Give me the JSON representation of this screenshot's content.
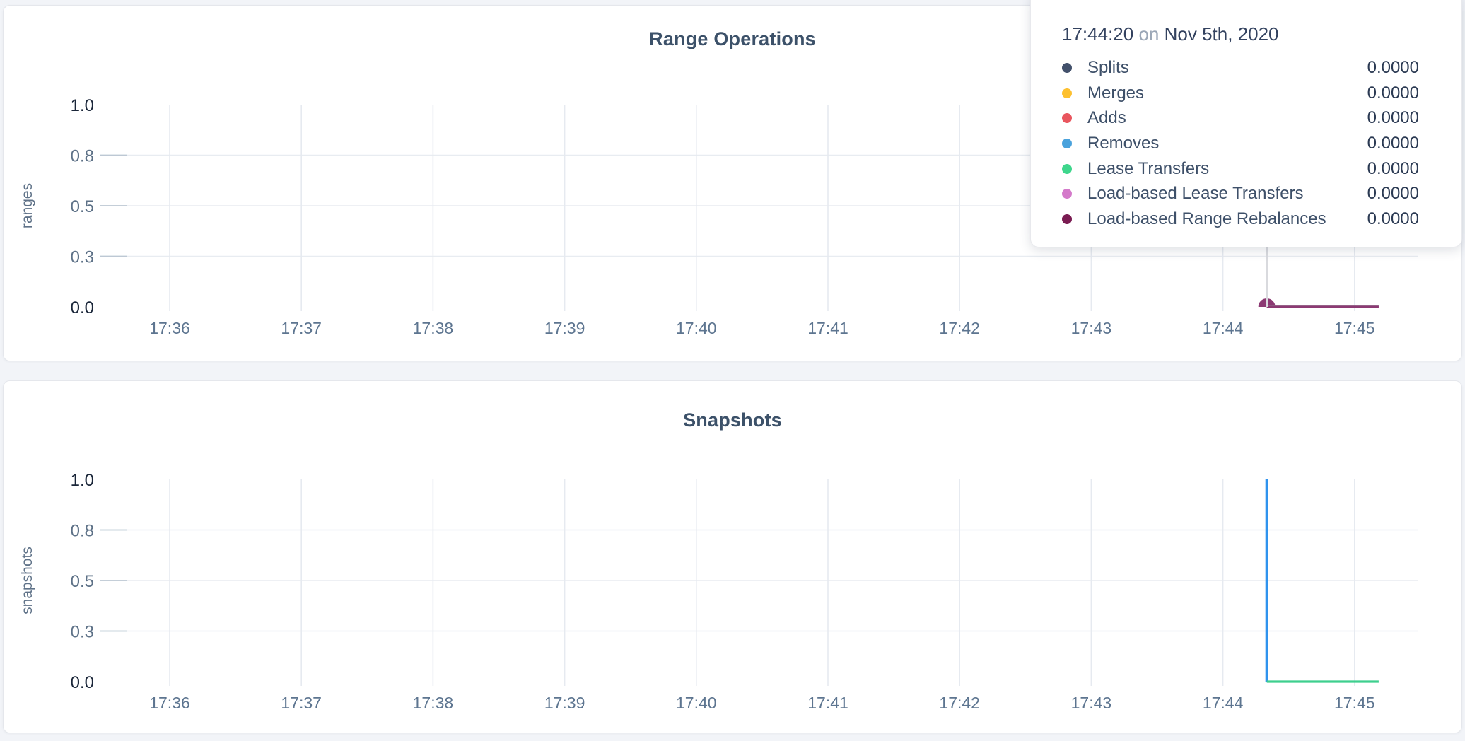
{
  "tooltip": {
    "time": "17:44:20",
    "on_word": "on",
    "date": "Nov 5th, 2020",
    "rows": [
      {
        "label": "Splits",
        "value": "0.0000",
        "color": "#42506b"
      },
      {
        "label": "Merges",
        "value": "0.0000",
        "color": "#fdc02f"
      },
      {
        "label": "Adds",
        "value": "0.0000",
        "color": "#e9565e"
      },
      {
        "label": "Removes",
        "value": "0.0000",
        "color": "#4aa2dc"
      },
      {
        "label": "Lease Transfers",
        "value": "0.0000",
        "color": "#3ed68c"
      },
      {
        "label": "Load-based Lease Transfers",
        "value": "0.0000",
        "color": "#d47aca"
      },
      {
        "label": "Load-based Range Rebalances",
        "value": "0.0000",
        "color": "#7a1c52"
      }
    ]
  },
  "axis": {
    "x_start": "17:36",
    "x_ticks": [
      "17:36",
      "17:37",
      "17:38",
      "17:39",
      "17:40",
      "17:41",
      "17:42",
      "17:43",
      "17:44",
      "17:45"
    ],
    "y_ticks": [
      {
        "label": "1.0",
        "v": 1.0
      },
      {
        "label": "0.8",
        "v": 0.75
      },
      {
        "label": "0.5",
        "v": 0.5
      },
      {
        "label": "0.3",
        "v": 0.25
      },
      {
        "label": "0.0",
        "v": 0.0
      }
    ]
  },
  "chart_data": [
    {
      "type": "line",
      "title": "Range Operations",
      "xlabel": "",
      "ylabel": "ranges",
      "ylim": [
        0,
        1
      ],
      "grid": true,
      "x_ticks": [
        "17:36",
        "17:37",
        "17:38",
        "17:39",
        "17:40",
        "17:41",
        "17:42",
        "17:43",
        "17:44",
        "17:45"
      ],
      "hover": {
        "time": "17:44:20",
        "crosshair_color": "#d9dade",
        "dot_color": "#8c3a73",
        "dot_radius": 12
      },
      "series": [
        {
          "name": "Splits",
          "color": "#42506b",
          "width": 3.2,
          "points": [
            [
              "17:44:20",
              0
            ],
            [
              "17:45:11",
              0
            ]
          ]
        },
        {
          "name": "Merges",
          "color": "#fdc02f",
          "width": 3.2,
          "points": [
            [
              "17:44:20",
              0
            ],
            [
              "17:45:11",
              0
            ]
          ]
        },
        {
          "name": "Adds",
          "color": "#e9565e",
          "width": 3.2,
          "points": [
            [
              "17:44:20",
              0
            ],
            [
              "17:45:11",
              0
            ]
          ]
        },
        {
          "name": "Removes",
          "color": "#4aa2dc",
          "width": 3.2,
          "points": [
            [
              "17:44:20",
              0
            ],
            [
              "17:45:11",
              0
            ]
          ]
        },
        {
          "name": "Lease Transfers",
          "color": "#3ed68c",
          "width": 3.2,
          "points": [
            [
              "17:44:20",
              0
            ],
            [
              "17:45:11",
              0
            ]
          ]
        },
        {
          "name": "Load-based Lease Transfers",
          "color": "#d47aca",
          "width": 3.2,
          "points": [
            [
              "17:44:20",
              0
            ],
            [
              "17:45:11",
              0
            ]
          ]
        },
        {
          "name": "Load-based Range Rebalances",
          "color": "#8c3a73",
          "width": 3.2,
          "points": [
            [
              "17:44:20",
              0
            ],
            [
              "17:45:11",
              0
            ]
          ]
        }
      ]
    },
    {
      "type": "line",
      "title": "Snapshots",
      "xlabel": "",
      "ylabel": "snapshots",
      "ylim": [
        0,
        1
      ],
      "grid": true,
      "x_ticks": [
        "17:36",
        "17:37",
        "17:38",
        "17:39",
        "17:40",
        "17:41",
        "17:42",
        "17:43",
        "17:44",
        "17:45"
      ],
      "series": [
        {
          "color": "#2f93ee",
          "width": 4,
          "points": [
            [
              "17:44:20",
              1
            ],
            [
              "17:44:20",
              0
            ]
          ]
        },
        {
          "color": "#3ecf8e",
          "width": 3.2,
          "points": [
            [
              "17:44:20",
              0
            ],
            [
              "17:45:11",
              0
            ]
          ]
        }
      ]
    }
  ]
}
